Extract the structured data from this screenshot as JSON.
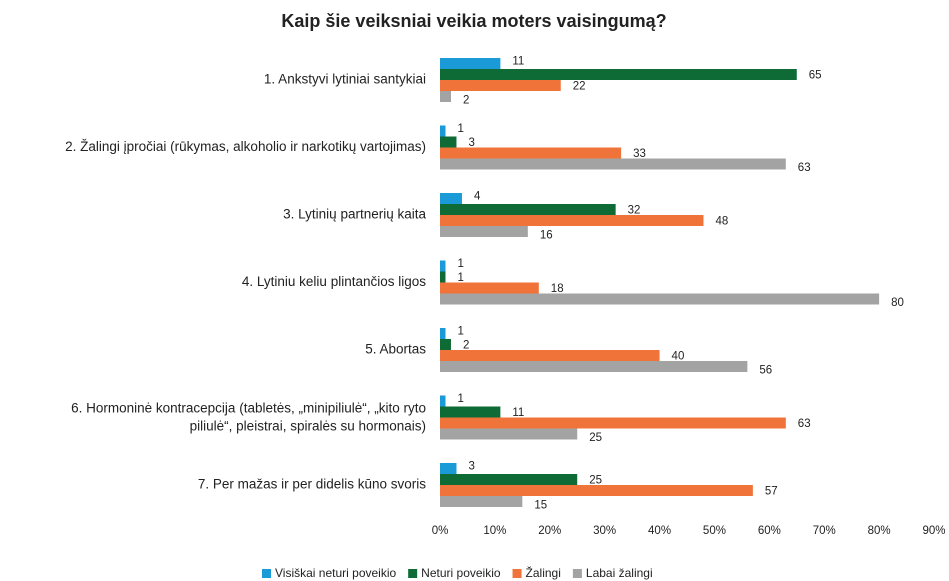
{
  "chart_data": {
    "type": "barh",
    "title": "Kaip šie veiksniai veikia moters vaisingumą?",
    "categories": [
      "1. Ankstyvi lytiniai santykiai",
      "2. Žalingi įpročiai (rūkymas, alkoholio ir narkotikų vartojimas)",
      "3. Lytinių partnerių kaita",
      "4. Lytiniu keliu plintančios ligos",
      "5. Abortas",
      "6. Hormoninė kontracepcija (tabletės, „minipiliulė“, „kito ryto\npiliulė“,  pleistrai, spiralės su hormonais)",
      "7. Per mažas ir per didelis kūno svoris"
    ],
    "series": [
      {
        "name": "Visiškai neturi poveikio",
        "color": "#1a9ad6",
        "values": [
          11,
          1,
          4,
          1,
          1,
          1,
          3
        ]
      },
      {
        "name": "Neturi poveikio",
        "color": "#0f6b35",
        "values": [
          65,
          3,
          32,
          1,
          2,
          11,
          25
        ]
      },
      {
        "name": "Žalingi",
        "color": "#f0733a",
        "values": [
          22,
          33,
          48,
          18,
          40,
          63,
          57
        ]
      },
      {
        "name": "Labai žalingi",
        "color": "#a3a3a3",
        "values": [
          2,
          63,
          16,
          80,
          56,
          25,
          15
        ]
      }
    ],
    "xlim": [
      0,
      90
    ],
    "xticks": [
      {
        "value": 0,
        "label": "0%"
      },
      {
        "value": 10,
        "label": "10%"
      },
      {
        "value": 20,
        "label": "20%"
      },
      {
        "value": 30,
        "label": "30%"
      },
      {
        "value": 40,
        "label": "40%"
      },
      {
        "value": 50,
        "label": "50%"
      },
      {
        "value": 60,
        "label": "60%"
      },
      {
        "value": 70,
        "label": "70%"
      },
      {
        "value": 80,
        "label": "80%"
      },
      {
        "value": 90,
        "label": "90%"
      }
    ],
    "grid": false,
    "legend": "bottom"
  }
}
